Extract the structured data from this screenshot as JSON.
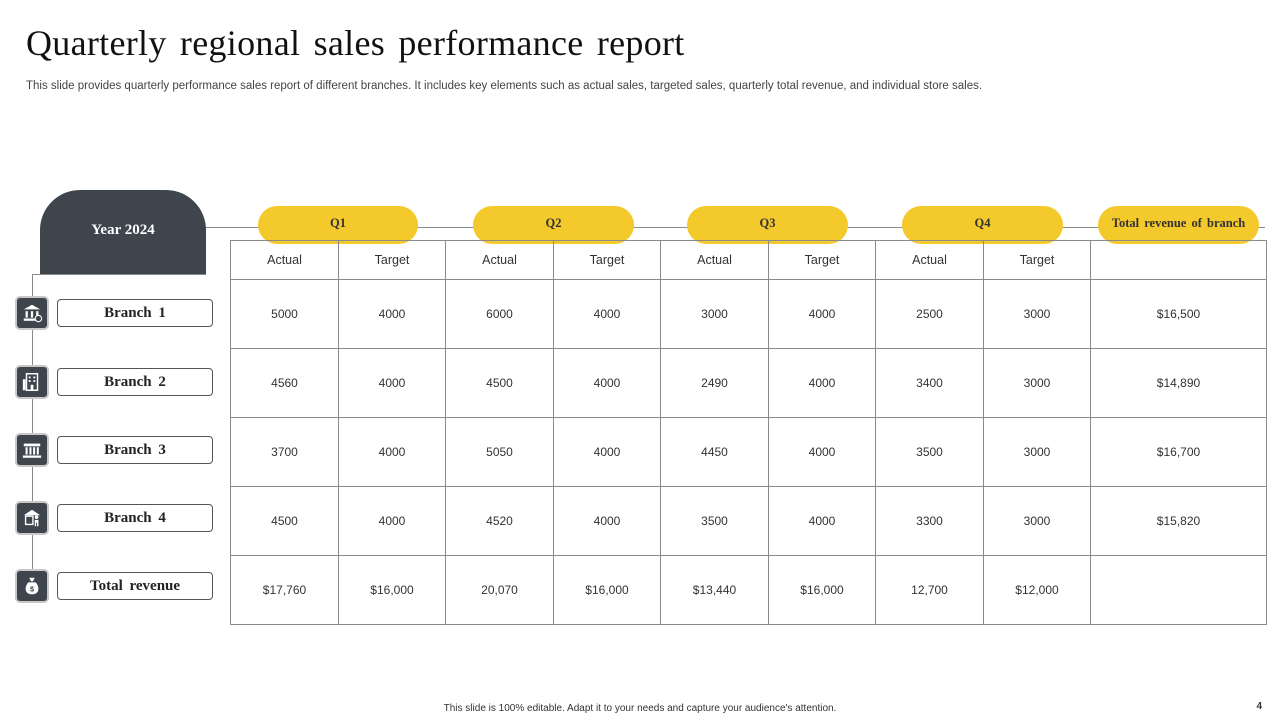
{
  "header": {
    "title": "Quarterly regional sales performance report",
    "subtitle": "This slide provides quarterly performance sales report of different branches. It includes key elements such as actual sales, targeted sales, quarterly total revenue, and individual store sales."
  },
  "year_label": "Year 2024",
  "quarters": [
    "Q1",
    "Q2",
    "Q3",
    "Q4"
  ],
  "total_column_label": "Total  revenue  of branch",
  "column_headers": [
    "Actual",
    "Target",
    "Actual",
    "Target",
    "Actual",
    "Target",
    "Actual",
    "Target",
    ""
  ],
  "rows": [
    {
      "label": "Branch  1",
      "icon": "bank-icon",
      "cells": [
        "5000",
        "4000",
        "6000",
        "4000",
        "3000",
        "4000",
        "2500",
        "3000",
        "$16,500"
      ]
    },
    {
      "label": "Branch  2",
      "icon": "office-building-icon",
      "cells": [
        "4560",
        "4000",
        "4500",
        "4000",
        "2490",
        "4000",
        "3400",
        "3000",
        "$14,890"
      ]
    },
    {
      "label": "Branch  3",
      "icon": "institution-icon",
      "cells": [
        "3700",
        "4000",
        "5050",
        "4000",
        "4450",
        "4000",
        "3500",
        "3000",
        "$16,700"
      ]
    },
    {
      "label": "Branch  4",
      "icon": "store-person-icon",
      "cells": [
        "4500",
        "4000",
        "4520",
        "4000",
        "3500",
        "4000",
        "3300",
        "3000",
        "$15,820"
      ]
    },
    {
      "label": "Total revenue",
      "icon": "money-bag-icon",
      "cells": [
        "$17,760",
        "$16,000",
        "20,070",
        "$16,000",
        "$13,440",
        "$16,000",
        "12,700",
        "$12,000",
        ""
      ]
    }
  ],
  "colors": {
    "accent": "#f4c92b",
    "dark": "#3e454d",
    "grid_line": "#8a8a8a"
  },
  "footer": "This slide is 100% editable. Adapt it to your needs and capture your audience's attention.",
  "page_number": "4"
}
